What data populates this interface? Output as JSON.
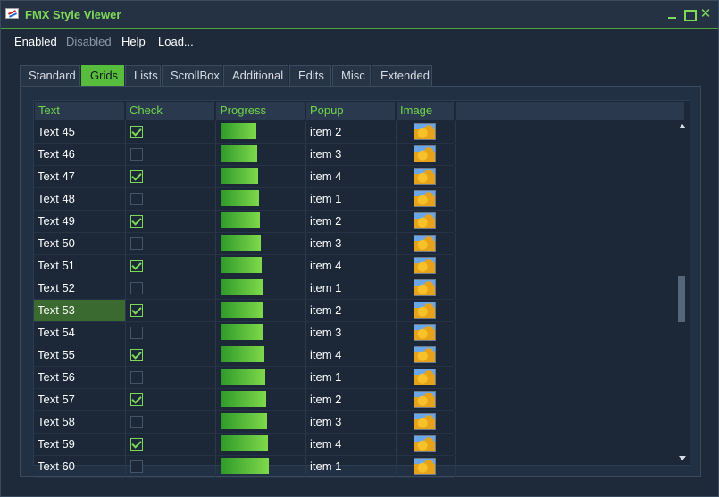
{
  "window": {
    "title": "FMX Style Viewer",
    "accent": "#7ed957"
  },
  "menu": [
    {
      "label": "Enabled",
      "disabled": false
    },
    {
      "label": "Disabled",
      "disabled": true
    },
    {
      "label": "Help",
      "disabled": false
    },
    {
      "label": "Load...",
      "disabled": false
    }
  ],
  "tabs": [
    {
      "label": "Standard",
      "active": false
    },
    {
      "label": "Grids",
      "active": true
    },
    {
      "label": "Lists",
      "active": false
    },
    {
      "label": "ScrollBox",
      "active": false
    },
    {
      "label": "Additional",
      "active": false
    },
    {
      "label": "Edits",
      "active": false
    },
    {
      "label": "Misc",
      "active": false
    },
    {
      "label": "Extended",
      "active": false
    }
  ],
  "grid": {
    "columns": [
      "Text",
      "Check",
      "Progress",
      "Popup",
      "Image"
    ],
    "image_icon": "image-thumbnail-icon",
    "selected_row": "Text 53",
    "rows": [
      {
        "text": "Text 45",
        "checked": true,
        "progress": 0.42,
        "popup": "item 2"
      },
      {
        "text": "Text 46",
        "checked": false,
        "progress": 0.43,
        "popup": "item 3"
      },
      {
        "text": "Text 47",
        "checked": true,
        "progress": 0.44,
        "popup": "item 4"
      },
      {
        "text": "Text 48",
        "checked": false,
        "progress": 0.45,
        "popup": "item 1"
      },
      {
        "text": "Text 49",
        "checked": true,
        "progress": 0.46,
        "popup": "item 2"
      },
      {
        "text": "Text 50",
        "checked": false,
        "progress": 0.47,
        "popup": "item 3"
      },
      {
        "text": "Text 51",
        "checked": true,
        "progress": 0.48,
        "popup": "item 4"
      },
      {
        "text": "Text 52",
        "checked": false,
        "progress": 0.49,
        "popup": "item 1"
      },
      {
        "text": "Text 53",
        "checked": true,
        "progress": 0.5,
        "popup": "item 2"
      },
      {
        "text": "Text 54",
        "checked": false,
        "progress": 0.51,
        "popup": "item 3"
      },
      {
        "text": "Text 55",
        "checked": true,
        "progress": 0.52,
        "popup": "item 4"
      },
      {
        "text": "Text 56",
        "checked": false,
        "progress": 0.53,
        "popup": "item 1"
      },
      {
        "text": "Text 57",
        "checked": true,
        "progress": 0.54,
        "popup": "item 2"
      },
      {
        "text": "Text 58",
        "checked": false,
        "progress": 0.55,
        "popup": "item 3"
      },
      {
        "text": "Text 59",
        "checked": true,
        "progress": 0.56,
        "popup": "item 4"
      },
      {
        "text": "Text 60",
        "checked": false,
        "progress": 0.57,
        "popup": "item 1"
      }
    ]
  }
}
